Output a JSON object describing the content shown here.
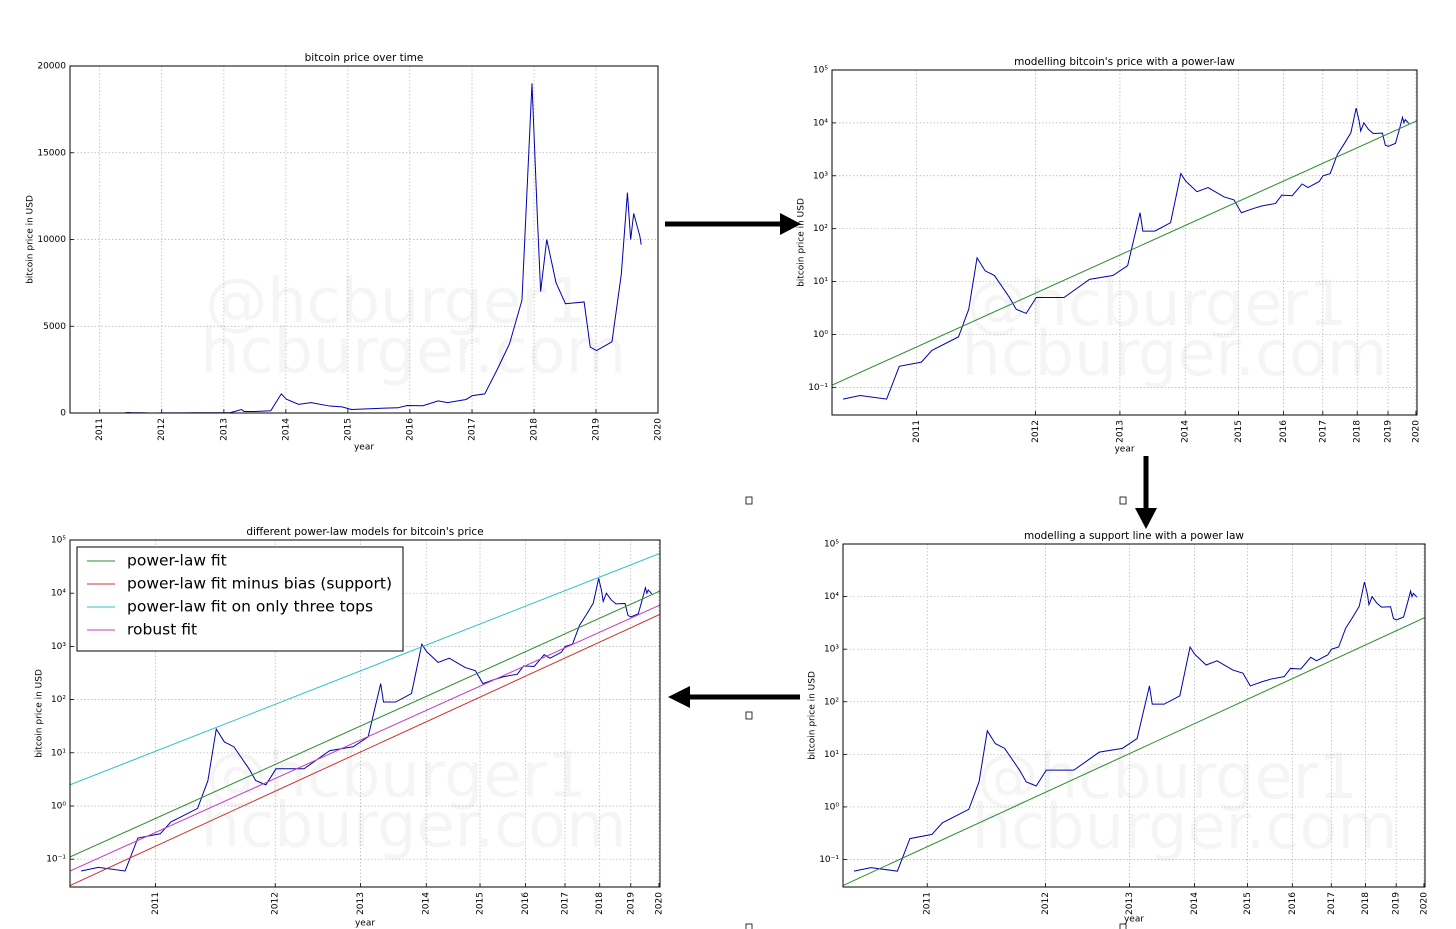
{
  "chart_data": [
    {
      "type": "line",
      "title": "bitcoin price over time",
      "xlabel": "year",
      "ylabel": "bitcoin price in USD",
      "xscale": "linear",
      "yscale": "linear",
      "grid": true,
      "watermark": [
        "@hcburger1",
        "hcburger.com"
      ],
      "xlim": [
        553,
        4015
      ],
      "ylim": [
        0,
        20000
      ],
      "xticks": [
        {
          "value": 728,
          "label": "2011"
        },
        {
          "value": 1093,
          "label": "2012"
        },
        {
          "value": 1459,
          "label": "2013"
        },
        {
          "value": 1824,
          "label": "2014"
        },
        {
          "value": 2189,
          "label": "2015"
        },
        {
          "value": 2554,
          "label": "2016"
        },
        {
          "value": 2920,
          "label": "2017"
        },
        {
          "value": 3285,
          "label": "2018"
        },
        {
          "value": 3650,
          "label": "2019"
        },
        {
          "value": 4015,
          "label": "2020"
        }
      ],
      "yticks": [
        0,
        5000,
        10000,
        15000,
        20000
      ],
      "series": [
        {
          "color": "#0000b0",
          "x": [
            566,
            600,
            657,
            686,
            740,
            767,
            840,
            870,
            895,
            920,
            950,
            1000,
            1023,
            1059,
            1096,
            1205,
            1315,
            1424,
            1498,
            1563,
            1578,
            1644,
            1735,
            1797,
            1826,
            1899,
            1972,
            2082,
            2155,
            2210,
            2301,
            2374,
            2484,
            2538,
            2630,
            2721,
            2776,
            2885,
            2922,
            2995,
            3068,
            3141,
            3214,
            3273,
            3306,
            3324,
            3360,
            3415,
            3470,
            3580,
            3616,
            3653,
            3744,
            3799,
            3835,
            3854,
            3872,
            3908,
            3916
          ],
          "values": [
            0.06,
            0.07,
            0.06,
            0.25,
            0.3,
            0.5,
            0.9,
            3,
            28,
            16,
            13,
            5,
            3,
            2.5,
            5,
            5,
            11,
            13,
            20,
            200,
            90,
            90,
            130,
            1100,
            800,
            500,
            600,
            400,
            350,
            200,
            240,
            270,
            300,
            430,
            420,
            700,
            600,
            780,
            1000,
            1100,
            2500,
            4000,
            6500,
            19000,
            11000,
            7000,
            10000,
            7500,
            6300,
            6400,
            3800,
            3600,
            4100,
            8000,
            12700,
            10000,
            11500,
            10200,
            9700
          ]
        }
      ]
    },
    {
      "type": "line",
      "title": "modelling bitcoin's price with a power-law",
      "xlabel": "year",
      "ylabel": "bitcoin price in USD",
      "xscale": "log",
      "yscale": "log",
      "grid": true,
      "watermark": [
        "@hcburger1",
        "hcburger.com"
      ],
      "xlim": [
        545,
        4030
      ],
      "ylim": [
        0.03,
        100000
      ],
      "xticks": [
        {
          "value": 728,
          "label": "2011"
        },
        {
          "value": 1093,
          "label": "2012"
        },
        {
          "value": 1459,
          "label": "2013"
        },
        {
          "value": 1824,
          "label": "2014"
        },
        {
          "value": 2189,
          "label": "2015"
        },
        {
          "value": 2554,
          "label": "2016"
        },
        {
          "value": 2920,
          "label": "2017"
        },
        {
          "value": 3285,
          "label": "2018"
        },
        {
          "value": 3650,
          "label": "2019"
        },
        {
          "value": 4015,
          "label": "2020"
        }
      ],
      "yticks": [
        {
          "value": 0.1,
          "label": "10⁻¹"
        },
        {
          "value": 1,
          "label": "10⁰"
        },
        {
          "value": 10,
          "label": "10¹"
        },
        {
          "value": 100,
          "label": "10²"
        },
        {
          "value": 1000,
          "label": "10³"
        },
        {
          "value": 10000,
          "label": "10⁴"
        },
        {
          "value": 100000,
          "label": "10⁵"
        }
      ],
      "series": [
        {
          "color": "#0000b0",
          "x": [
            566,
            600,
            657,
            686,
            740,
            767,
            840,
            870,
            895,
            920,
            950,
            1000,
            1023,
            1059,
            1096,
            1205,
            1315,
            1424,
            1498,
            1563,
            1578,
            1644,
            1735,
            1797,
            1826,
            1899,
            1972,
            2082,
            2155,
            2210,
            2301,
            2374,
            2484,
            2538,
            2630,
            2721,
            2776,
            2885,
            2922,
            2995,
            3068,
            3141,
            3214,
            3273,
            3306,
            3324,
            3360,
            3415,
            3470,
            3580,
            3616,
            3653,
            3744,
            3799,
            3835,
            3854,
            3872,
            3908,
            3916
          ],
          "values": [
            0.06,
            0.07,
            0.06,
            0.25,
            0.3,
            0.5,
            0.9,
            3,
            28,
            16,
            13,
            5,
            3,
            2.5,
            5,
            5,
            11,
            13,
            20,
            200,
            90,
            90,
            130,
            1100,
            800,
            500,
            600,
            400,
            350,
            200,
            240,
            270,
            300,
            430,
            420,
            700,
            600,
            780,
            1000,
            1100,
            2500,
            4000,
            6500,
            19000,
            11000,
            7000,
            10000,
            7500,
            6300,
            6400,
            3800,
            3600,
            4100,
            8000,
            12700,
            10000,
            11500,
            10200,
            9700
          ]
        },
        {
          "color": "#2e8b2e",
          "x": [
            545,
            4030
          ],
          "values": [
            0.11,
            11000
          ]
        }
      ]
    },
    {
      "type": "line",
      "title": "different power-law models for bitcoin's price",
      "xlabel": "year",
      "ylabel": "bitcoin price in USD",
      "xscale": "log",
      "yscale": "log",
      "grid": true,
      "legend": "upper left",
      "watermark": [
        "@hcburger1",
        "hcburger.com"
      ],
      "xlim": [
        545,
        4030
      ],
      "ylim": [
        0.03,
        100000
      ],
      "xticks": [
        {
          "value": 728,
          "label": "2011"
        },
        {
          "value": 1093,
          "label": "2012"
        },
        {
          "value": 1459,
          "label": "2013"
        },
        {
          "value": 1824,
          "label": "2014"
        },
        {
          "value": 2189,
          "label": "2015"
        },
        {
          "value": 2554,
          "label": "2016"
        },
        {
          "value": 2920,
          "label": "2017"
        },
        {
          "value": 3285,
          "label": "2018"
        },
        {
          "value": 3650,
          "label": "2019"
        },
        {
          "value": 4015,
          "label": "2020"
        }
      ],
      "yticks": [
        {
          "value": 0.1,
          "label": "10⁻¹"
        },
        {
          "value": 1,
          "label": "10⁰"
        },
        {
          "value": 10,
          "label": "10¹"
        },
        {
          "value": 100,
          "label": "10²"
        },
        {
          "value": 1000,
          "label": "10³"
        },
        {
          "value": 10000,
          "label": "10⁴"
        },
        {
          "value": 100000,
          "label": "10⁵"
        }
      ],
      "series": [
        {
          "color": "#0000b0",
          "x": [
            566,
            600,
            657,
            686,
            740,
            767,
            840,
            870,
            895,
            920,
            950,
            1000,
            1023,
            1059,
            1096,
            1205,
            1315,
            1424,
            1498,
            1563,
            1578,
            1644,
            1735,
            1797,
            1826,
            1899,
            1972,
            2082,
            2155,
            2210,
            2301,
            2374,
            2484,
            2538,
            2630,
            2721,
            2776,
            2885,
            2922,
            2995,
            3068,
            3141,
            3214,
            3273,
            3306,
            3324,
            3360,
            3415,
            3470,
            3580,
            3616,
            3653,
            3744,
            3799,
            3835,
            3854,
            3872,
            3908,
            3916
          ],
          "values": [
            0.06,
            0.07,
            0.06,
            0.25,
            0.3,
            0.5,
            0.9,
            3,
            28,
            16,
            13,
            5,
            3,
            2.5,
            5,
            5,
            11,
            13,
            20,
            200,
            90,
            90,
            130,
            1100,
            800,
            500,
            600,
            400,
            350,
            200,
            240,
            270,
            300,
            430,
            420,
            700,
            600,
            780,
            1000,
            1100,
            2500,
            4000,
            6500,
            19000,
            11000,
            7000,
            10000,
            7500,
            6300,
            6400,
            3800,
            3600,
            4100,
            8000,
            12700,
            10000,
            11500,
            10200,
            9700
          ]
        },
        {
          "name": "power-law fit",
          "color": "#2e8b2e",
          "x": [
            545,
            4030
          ],
          "values": [
            0.11,
            11000
          ]
        },
        {
          "name": "power-law fit minus bias (support)",
          "color": "#d03030",
          "x": [
            545,
            4030
          ],
          "values": [
            0.032,
            4000
          ]
        },
        {
          "name": "power-law fit on only three tops",
          "color": "#30c0c8",
          "x": [
            545,
            4030
          ],
          "values": [
            2.5,
            56000
          ]
        },
        {
          "name": "robust fit",
          "color": "#c040c0",
          "x": [
            545,
            4030
          ],
          "values": [
            0.06,
            6000
          ]
        }
      ]
    },
    {
      "type": "line",
      "title": "modelling a support line with a power law",
      "xlabel": "year",
      "ylabel": "bitcoin price in USD",
      "xscale": "log",
      "yscale": "log",
      "grid": true,
      "watermark": [
        "@hcburger1",
        "hcburger.com"
      ],
      "xlim": [
        545,
        4030
      ],
      "ylim": [
        0.03,
        100000
      ],
      "xticks": [
        {
          "value": 728,
          "label": "2011"
        },
        {
          "value": 1093,
          "label": "2012"
        },
        {
          "value": 1459,
          "label": "2013"
        },
        {
          "value": 1824,
          "label": "2014"
        },
        {
          "value": 2189,
          "label": "2015"
        },
        {
          "value": 2554,
          "label": "2016"
        },
        {
          "value": 2920,
          "label": "2017"
        },
        {
          "value": 3285,
          "label": "2018"
        },
        {
          "value": 3650,
          "label": "2019"
        },
        {
          "value": 4015,
          "label": "2020"
        }
      ],
      "yticks": [
        {
          "value": 0.1,
          "label": "10⁻¹"
        },
        {
          "value": 1,
          "label": "10⁰"
        },
        {
          "value": 10,
          "label": "10¹"
        },
        {
          "value": 100,
          "label": "10²"
        },
        {
          "value": 1000,
          "label": "10³"
        },
        {
          "value": 10000,
          "label": "10⁴"
        },
        {
          "value": 100000,
          "label": "10⁵"
        }
      ],
      "series": [
        {
          "color": "#0000b0",
          "x": [
            566,
            600,
            657,
            686,
            740,
            767,
            840,
            870,
            895,
            920,
            950,
            1000,
            1023,
            1059,
            1096,
            1205,
            1315,
            1424,
            1498,
            1563,
            1578,
            1644,
            1735,
            1797,
            1826,
            1899,
            1972,
            2082,
            2155,
            2210,
            2301,
            2374,
            2484,
            2538,
            2630,
            2721,
            2776,
            2885,
            2922,
            2995,
            3068,
            3141,
            3214,
            3273,
            3306,
            3324,
            3360,
            3415,
            3470,
            3580,
            3616,
            3653,
            3744,
            3799,
            3835,
            3854,
            3872,
            3908,
            3916
          ],
          "values": [
            0.06,
            0.07,
            0.06,
            0.25,
            0.3,
            0.5,
            0.9,
            3,
            28,
            16,
            13,
            5,
            3,
            2.5,
            5,
            5,
            11,
            13,
            20,
            200,
            90,
            90,
            130,
            1100,
            800,
            500,
            600,
            400,
            350,
            200,
            240,
            270,
            300,
            430,
            420,
            700,
            600,
            780,
            1000,
            1100,
            2500,
            4000,
            6500,
            19000,
            11000,
            7000,
            10000,
            7500,
            6300,
            6400,
            3800,
            3600,
            4100,
            8000,
            12700,
            10000,
            11500,
            10200,
            9700
          ]
        },
        {
          "color": "#2e8b2e",
          "x": [
            545,
            4030
          ],
          "values": [
            0.032,
            4000
          ]
        }
      ]
    }
  ]
}
